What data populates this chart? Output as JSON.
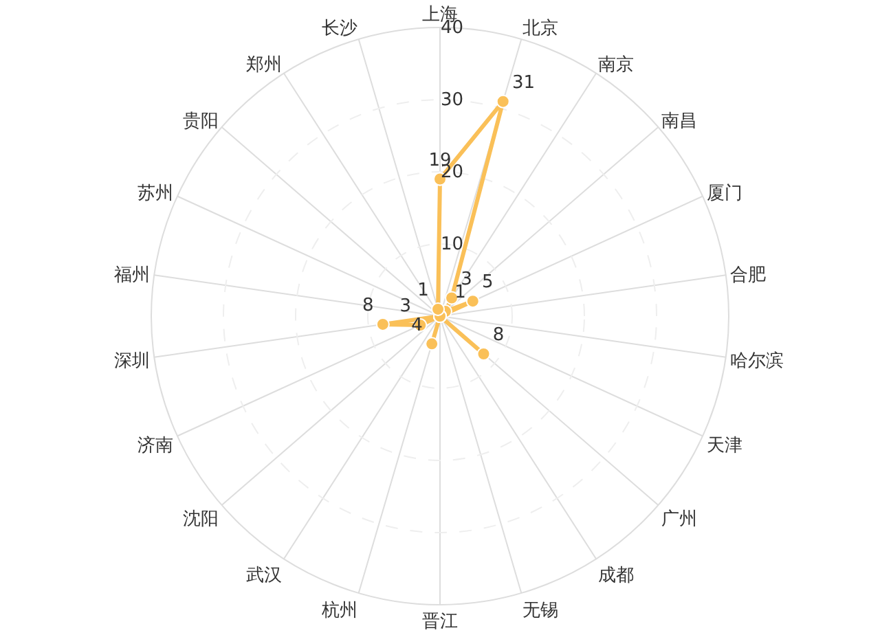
{
  "chart_data": {
    "type": "radar",
    "categories": [
      "上海",
      "北京",
      "南京",
      "南昌",
      "厦门",
      "合肥",
      "哈尔滨",
      "天津",
      "广州",
      "成都",
      "无锡",
      "晋江",
      "杭州",
      "武汉",
      "沈阳",
      "济南",
      "深圳",
      "福州",
      "苏州",
      "贵阳",
      "郑州",
      "长沙"
    ],
    "series": [
      {
        "color": "#fac058",
        "values": [
          19,
          31,
          3,
          1,
          5,
          0,
          0,
          0,
          8,
          0,
          0,
          0,
          4,
          0,
          0,
          3,
          8,
          0,
          0,
          0,
          0,
          1
        ],
        "value_labels": [
          "19",
          "31",
          "3",
          "1",
          "5",
          null,
          null,
          null,
          "8",
          null,
          null,
          null,
          "4",
          null,
          null,
          "3",
          "8",
          null,
          null,
          null,
          null,
          "1"
        ]
      }
    ],
    "ylim": [
      0,
      40
    ],
    "yticks": [
      10,
      20,
      30,
      40
    ],
    "grid": true,
    "marker": "circle",
    "line_style": "solid"
  }
}
